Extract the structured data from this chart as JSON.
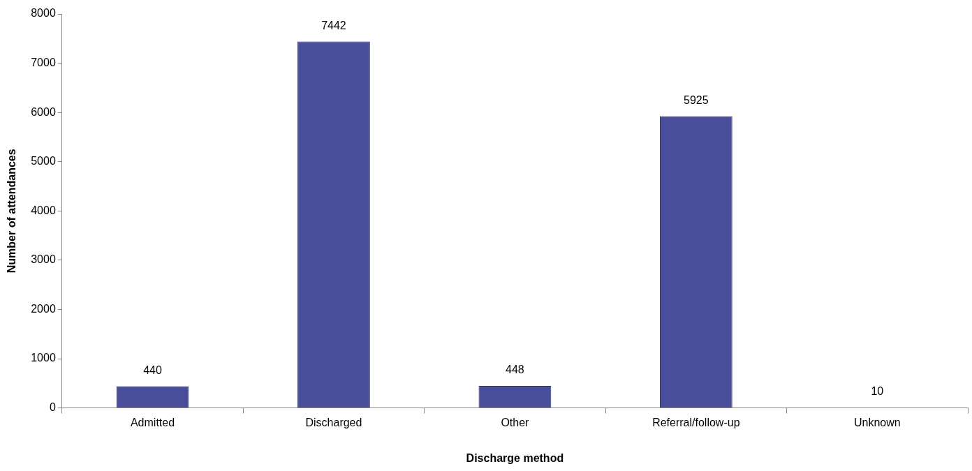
{
  "chart_data": {
    "type": "bar",
    "xlabel": "Discharge method",
    "ylabel": "Number of attendances",
    "categories": [
      "Admitted",
      "Discharged",
      "Other",
      "Referral/follow-up",
      "Unknown"
    ],
    "values": [
      440,
      7442,
      448,
      5925,
      10
    ],
    "color": "#4a4e9a",
    "ylim": [
      0,
      8000
    ],
    "yticks": [
      0,
      1000,
      2000,
      3000,
      4000,
      5000,
      6000,
      7000,
      8000
    ],
    "grid": false,
    "legend": false,
    "data_labels": true
  }
}
